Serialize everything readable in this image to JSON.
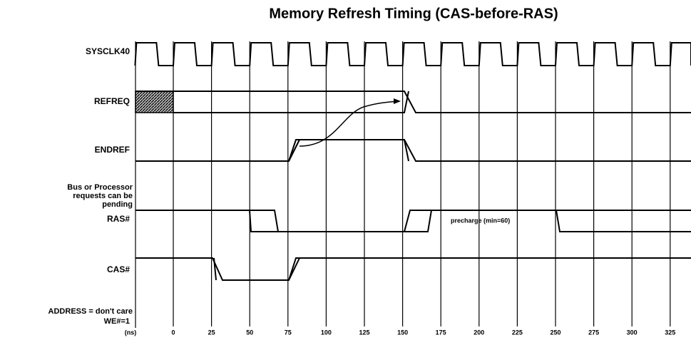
{
  "title": "Memory Refresh Timing (CAS-before-RAS)",
  "signals": [
    {
      "label": "SYSCLK40"
    },
    {
      "label": "REFREQ"
    },
    {
      "label": "ENDREF"
    },
    {
      "label": "Bus or Processor requests can be pending"
    },
    {
      "label": "RAS#"
    },
    {
      "label": "CAS#"
    },
    {
      "label": "ADDRESS = don't care"
    },
    {
      "label": "WE#=1"
    }
  ],
  "axis": {
    "unit": "(ns)",
    "ticks": [
      "0",
      "25",
      "50",
      "75",
      "100",
      "125",
      "150",
      "175",
      "200",
      "225",
      "250",
      "275",
      "300",
      "325"
    ]
  },
  "annotations": [
    {
      "text": "precharge (min=60)"
    }
  ]
}
